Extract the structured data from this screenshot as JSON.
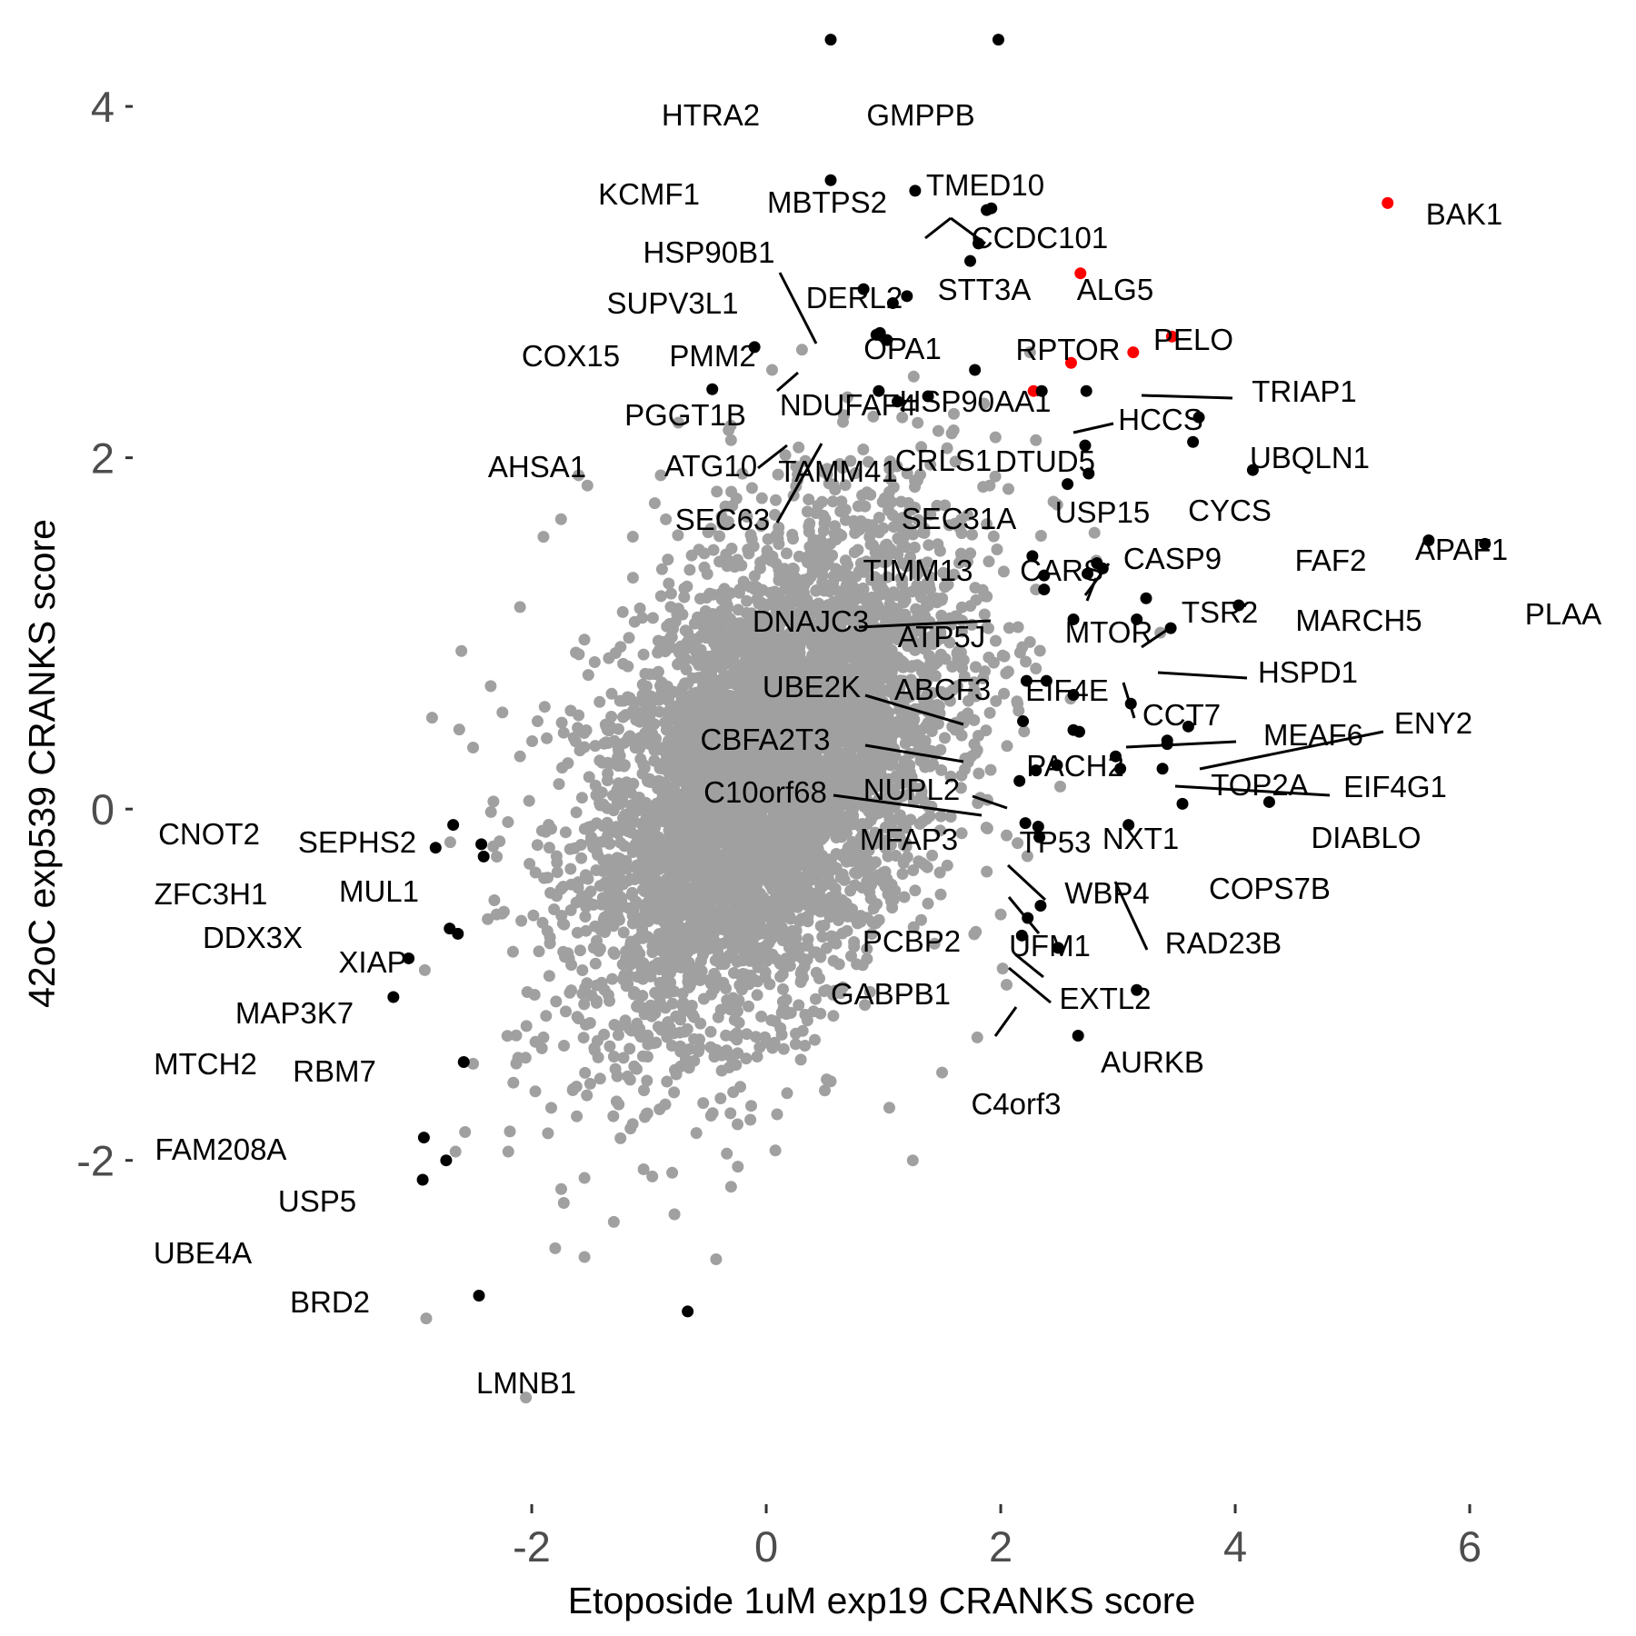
{
  "chart_data": {
    "type": "scatter",
    "title": "",
    "xlabel": "Etoposide 1uM exp19 CRANKS score",
    "ylabel": "42oC exp539 CRANKS score",
    "xlim": [
      -3.45,
      6.55
    ],
    "ylim": [
      -3.74,
      4.58
    ],
    "x_ticks": [
      "-2",
      "0",
      "2",
      "4",
      "6"
    ],
    "y_ticks": [
      "-2",
      "0",
      "2",
      "4"
    ],
    "grid": false,
    "legend": "none",
    "colors": {
      "background": "#ffffff",
      "cloud": "#a0a0a0",
      "highlight": "#000000",
      "accent": "#ff0000",
      "tick_text": "#4d4d4d"
    },
    "background_points": {
      "color": "#a0a0a0",
      "description_level": "dense gray cloud, approx. bivariate normal",
      "points": [
        [
          -2.1,
          1.15
        ],
        [
          -1.9,
          1.55
        ],
        [
          -1.75,
          1.65
        ],
        [
          -2.25,
          0.55
        ],
        [
          -2.1,
          0.3
        ],
        [
          -1.6,
          1.9
        ],
        [
          -2.85,
          0.52
        ],
        [
          -2.5,
          0.35
        ],
        [
          -2.3,
          -0.6
        ],
        [
          -1.9,
          -1.3
        ],
        [
          -2.5,
          -1.45
        ],
        [
          -2.65,
          -1.95
        ],
        [
          -2.2,
          -1.95
        ],
        [
          -1.55,
          -2.1
        ],
        [
          -1.55,
          -2.55
        ],
        [
          -1.8,
          -2.5
        ],
        [
          -2.9,
          -2.9
        ],
        [
          -2.05,
          -3.35
        ],
        [
          -1.3,
          -2.35
        ],
        [
          -0.3,
          -2.15
        ],
        [
          1.25,
          -2.0
        ],
        [
          1.05,
          -1.7
        ],
        [
          0.55,
          -1.55
        ],
        [
          1.5,
          -1.5
        ],
        [
          0.05,
          2.5
        ],
        [
          -0.3,
          2.1
        ],
        [
          -0.9,
          1.9
        ],
        [
          -0.75,
          2.2
        ],
        [
          1.6,
          2.25
        ],
        [
          2.25,
          2.6
        ],
        [
          2.3,
          2.1
        ],
        [
          2.45,
          1.75
        ],
        [
          2.3,
          1.25
        ],
        [
          2.3,
          0.8
        ],
        [
          1.75,
          0.3
        ],
        [
          2.05,
          -0.15
        ],
        [
          2.0,
          -0.6
        ],
        [
          2.05,
          -1.0
        ],
        [
          1.8,
          -1.3
        ],
        [
          1.5,
          1.2
        ],
        [
          1.65,
          1.6
        ],
        [
          -1.85,
          -0.95
        ],
        [
          -2.35,
          0.7
        ],
        [
          -2.6,
          0.9
        ],
        [
          -1.95,
          0.5
        ]
      ]
    },
    "points": [
      {
        "x": 0.55,
        "y": 4.38,
        "label": "HTRA2",
        "color": "#000000"
      },
      {
        "x": 1.98,
        "y": 4.38,
        "label": "GMPPB",
        "color": "#000000"
      },
      {
        "x": 0.55,
        "y": 3.58,
        "label": "KCMF1",
        "color": "#000000"
      },
      {
        "x": 1.27,
        "y": 3.52,
        "label": "MBTPS2",
        "color": "#000000"
      },
      {
        "x": 1.92,
        "y": 3.42,
        "label": "TMED10",
        "color": "#000000"
      },
      {
        "x": 1.88,
        "y": 3.41,
        "label": "CCDC101",
        "color": "#000000"
      },
      {
        "x": 1.81,
        "y": 3.22,
        "label": "STT3A",
        "color": "#000000"
      },
      {
        "x": 1.74,
        "y": 3.12,
        "label": "DERL2",
        "color": "#000000"
      },
      {
        "x": 5.3,
        "y": 3.45,
        "label": "BAK1",
        "color": "#ff0000"
      },
      {
        "x": 2.68,
        "y": 3.05,
        "label": "ALG5",
        "color": "#ff0000"
      },
      {
        "x": 1.08,
        "y": 2.88,
        "label": "HSP90B1",
        "color": "#000000"
      },
      {
        "x": 0.83,
        "y": 2.96,
        "label": "SUPV3L1",
        "color": "#000000"
      },
      {
        "x": 1.2,
        "y": 2.92,
        "label": "OPA1",
        "color": "#000000"
      },
      {
        "x": -0.1,
        "y": 2.63,
        "label": "COX15",
        "color": "#000000"
      },
      {
        "x": 0.97,
        "y": 2.71,
        "label": "PMM2",
        "color": "#000000"
      },
      {
        "x": 3.46,
        "y": 2.69,
        "label": "PELO",
        "color": "#ff0000"
      },
      {
        "x": 2.6,
        "y": 2.54,
        "label": "RPTOR",
        "color": "#ff0000"
      },
      {
        "x": 3.13,
        "y": 2.6,
        "label": "TRIAP1",
        "color": "#ff0000"
      },
      {
        "x": 0.94,
        "y": 2.7,
        "label": "PGGT1B",
        "color": "#000000"
      },
      {
        "x": 1.03,
        "y": 2.67,
        "label": "NDUFAF4",
        "color": "#000000"
      },
      {
        "x": 2.28,
        "y": 2.38,
        "label": "HSP90AA1",
        "color": "#ff0000"
      },
      {
        "x": 2.35,
        "y": 2.38,
        "label": "CRLS1",
        "color": "#000000"
      },
      {
        "x": 2.73,
        "y": 2.38,
        "label": "HCCS",
        "color": "#000000"
      },
      {
        "x": 1.12,
        "y": 2.32,
        "label": "TAMM41",
        "color": "#000000"
      },
      {
        "x": -0.46,
        "y": 2.39,
        "label": "AHSA1",
        "color": "#000000"
      },
      {
        "x": 0.96,
        "y": 2.38,
        "label": "ATG10",
        "color": "#000000"
      },
      {
        "x": 1.38,
        "y": 2.35,
        "label": "SEC63",
        "color": "#000000"
      },
      {
        "x": 1.78,
        "y": 2.5,
        "label": "",
        "color": "#000000"
      },
      {
        "x": 2.72,
        "y": 2.07,
        "label": "DTUD5",
        "color": "#000000"
      },
      {
        "x": 3.69,
        "y": 2.23,
        "label": "UBQLN1",
        "color": "#000000"
      },
      {
        "x": 3.64,
        "y": 2.09,
        "label": "CYCS",
        "color": "#000000"
      },
      {
        "x": 2.57,
        "y": 1.85,
        "label": "SEC31A",
        "color": "#000000"
      },
      {
        "x": 4.15,
        "y": 1.93,
        "label": "FAF2",
        "color": "#000000"
      },
      {
        "x": 2.75,
        "y": 1.91,
        "label": "USP15",
        "color": "#000000"
      },
      {
        "x": 5.65,
        "y": 1.53,
        "label": "APAF1",
        "color": "#000000"
      },
      {
        "x": 6.13,
        "y": 1.51,
        "label": "PLAA",
        "color": "#000000"
      },
      {
        "x": 2.82,
        "y": 1.4,
        "label": "CASP9",
        "color": "#000000"
      },
      {
        "x": 2.87,
        "y": 1.37,
        "label": "CARS",
        "color": "#000000"
      },
      {
        "x": 2.27,
        "y": 1.44,
        "label": "TIMM13",
        "color": "#000000"
      },
      {
        "x": 2.37,
        "y": 1.33,
        "label": "DNAJC3",
        "color": "#000000"
      },
      {
        "x": 2.37,
        "y": 1.25,
        "label": "ATP5J",
        "color": "#000000"
      },
      {
        "x": 2.74,
        "y": 1.34,
        "label": "MTOR",
        "color": "#000000"
      },
      {
        "x": 3.24,
        "y": 1.2,
        "label": "TSR2",
        "color": "#000000"
      },
      {
        "x": 4.03,
        "y": 1.16,
        "label": "MARCH5",
        "color": "#000000"
      },
      {
        "x": 3.45,
        "y": 1.03,
        "label": "HSPD1",
        "color": "#000000"
      },
      {
        "x": 3.16,
        "y": 1.08,
        "label": "EIF4E",
        "color": "#000000"
      },
      {
        "x": 2.62,
        "y": 1.08,
        "label": "",
        "color": "#000000"
      },
      {
        "x": 2.22,
        "y": 0.73,
        "label": "UBE2K",
        "color": "#000000"
      },
      {
        "x": 2.39,
        "y": 0.73,
        "label": "ABCF3",
        "color": "#000000"
      },
      {
        "x": 2.62,
        "y": 0.65,
        "label": "CCT7",
        "color": "#000000"
      },
      {
        "x": 3.11,
        "y": 0.6,
        "label": "MEAF6",
        "color": "#000000"
      },
      {
        "x": 3.6,
        "y": 0.47,
        "label": "ENY2",
        "color": "#000000"
      },
      {
        "x": 2.19,
        "y": 0.5,
        "label": "CBFA2T3",
        "color": "#000000"
      },
      {
        "x": 2.62,
        "y": 0.45,
        "label": "",
        "color": "#000000"
      },
      {
        "x": 2.67,
        "y": 0.44,
        "label": "PACH2",
        "color": "#000000"
      },
      {
        "x": 3.42,
        "y": 0.39,
        "label": "TOP2A",
        "color": "#000000"
      },
      {
        "x": 3.42,
        "y": 0.37,
        "label": "EIF4G1",
        "color": "#000000"
      },
      {
        "x": 2.98,
        "y": 0.3,
        "label": "",
        "color": "#000000"
      },
      {
        "x": 2.48,
        "y": 0.25,
        "label": "NUPL2",
        "color": "#000000"
      },
      {
        "x": 2.3,
        "y": 0.22,
        "label": "C10orf68",
        "color": "#000000"
      },
      {
        "x": 2.16,
        "y": 0.16,
        "label": "",
        "color": "#000000"
      },
      {
        "x": 3.02,
        "y": 0.23,
        "label": "",
        "color": "#000000"
      },
      {
        "x": 3.38,
        "y": 0.23,
        "label": "NXT1",
        "color": "#000000"
      },
      {
        "x": 3.55,
        "y": 0.03,
        "label": "COPS7B",
        "color": "#000000"
      },
      {
        "x": 4.29,
        "y": 0.04,
        "label": "DIABLO",
        "color": "#000000"
      },
      {
        "x": 2.21,
        "y": -0.08,
        "label": "MFAP3",
        "color": "#000000"
      },
      {
        "x": 2.32,
        "y": -0.1,
        "label": "TP53",
        "color": "#000000"
      },
      {
        "x": 3.09,
        "y": -0.09,
        "label": "RAD23B",
        "color": "#000000"
      },
      {
        "x": 2.33,
        "y": -0.16,
        "label": "WBP4",
        "color": "#000000"
      },
      {
        "x": 2.34,
        "y": -0.55,
        "label": "UFM1",
        "color": "#000000"
      },
      {
        "x": 2.23,
        "y": -0.62,
        "label": "PCBP2",
        "color": "#000000"
      },
      {
        "x": 2.18,
        "y": -0.72,
        "label": "GABPB1",
        "color": "#000000"
      },
      {
        "x": 2.49,
        "y": -0.79,
        "label": "EXTL2",
        "color": "#000000"
      },
      {
        "x": 3.16,
        "y": -1.03,
        "label": "AURKB",
        "color": "#000000"
      },
      {
        "x": 2.66,
        "y": -1.29,
        "label": "C4orf3",
        "color": "#000000"
      },
      {
        "x": -2.67,
        "y": -0.09,
        "label": "CNOT2",
        "color": "#000000"
      },
      {
        "x": -2.82,
        "y": -0.22,
        "label": "ZFC3H1",
        "color": "#000000"
      },
      {
        "x": -2.43,
        "y": -0.2,
        "label": "SEPHS2",
        "color": "#000000"
      },
      {
        "x": -2.41,
        "y": -0.27,
        "label": "MUL1",
        "color": "#000000"
      },
      {
        "x": -2.7,
        "y": -0.68,
        "label": "DDX3X",
        "color": "#000000"
      },
      {
        "x": -2.63,
        "y": -0.71,
        "label": "XIAP",
        "color": "#000000"
      },
      {
        "x": -3.05,
        "y": -0.85,
        "label": "MAP3K7",
        "color": "#000000"
      },
      {
        "x": -3.18,
        "y": -1.07,
        "label": "MTCH2",
        "color": "#000000"
      },
      {
        "x": -2.58,
        "y": -1.44,
        "label": "RBM7",
        "color": "#000000"
      },
      {
        "x": -2.92,
        "y": -1.87,
        "label": "FAM208A",
        "color": "#000000"
      },
      {
        "x": -2.73,
        "y": -2.0,
        "label": "USP5",
        "color": "#000000"
      },
      {
        "x": -2.93,
        "y": -2.11,
        "label": "UBE4A",
        "color": "#000000"
      },
      {
        "x": -2.45,
        "y": -2.77,
        "label": "BRD2",
        "color": "#000000"
      },
      {
        "x": -0.67,
        "y": -2.86,
        "label": "LMNB1",
        "color": "#000000"
      }
    ]
  }
}
